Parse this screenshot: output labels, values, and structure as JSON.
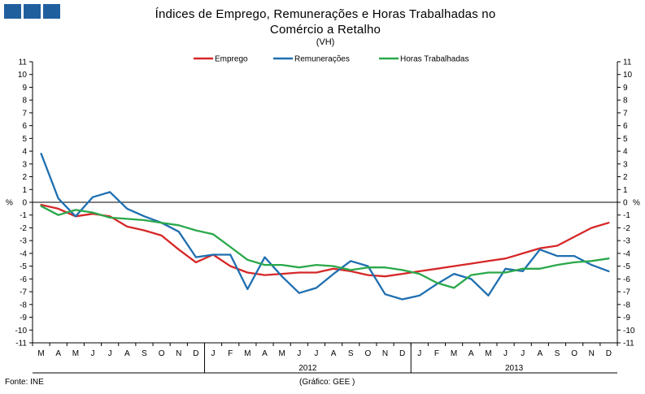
{
  "title": "Índices de Emprego, Remunerações e Horas Trabalhadas  no Comércio a Retalho",
  "subtitle": "(VH)",
  "source": "Fonte: INE",
  "credit": "(Gráfico: GEE )",
  "colors": {
    "logo": "#1f5f9e"
  },
  "chart_data": {
    "type": "line",
    "title": "Índices de Emprego, Remunerações e Horas Trabalhadas  no Comércio a Retalho",
    "ylabel_left": "%",
    "ylabel_right": "%",
    "ylim": [
      -11,
      11
    ],
    "yticks": [
      11,
      10,
      9,
      8,
      7,
      6,
      5,
      4,
      3,
      2,
      1,
      0,
      -1,
      -2,
      -3,
      -4,
      -5,
      -6,
      -7,
      -8,
      -9,
      -10,
      -11
    ],
    "categories": [
      "M",
      "A",
      "M",
      "J",
      "J",
      "A",
      "S",
      "O",
      "N",
      "D",
      "J",
      "F",
      "M",
      "A",
      "M",
      "J",
      "J",
      "A",
      "S",
      "O",
      "N",
      "D",
      "J",
      "F",
      "M",
      "A",
      "M",
      "J",
      "J",
      "A",
      "S",
      "O",
      "N",
      "D"
    ],
    "years": [
      {
        "label": "2012",
        "start": 10,
        "end": 21
      },
      {
        "label": "2013",
        "start": 22,
        "end": 33
      }
    ],
    "legend_position": "top-center",
    "series": [
      {
        "name": "Emprego",
        "color": "#d62728",
        "values": [
          -0.2,
          -0.5,
          -1.1,
          -0.9,
          -1.1,
          -1.9,
          -2.2,
          -2.6,
          -3.7,
          -4.7,
          -4.1,
          -5.0,
          -5.5,
          -5.7,
          -5.6,
          -5.5,
          -5.5,
          -5.2,
          -5.4,
          -5.7,
          -5.8,
          -5.6,
          -5.4,
          -5.2,
          -5.0,
          -4.8,
          -4.6,
          -4.4,
          -4.0,
          -3.6,
          -3.4,
          -2.7,
          -2.0,
          -1.6
        ]
      },
      {
        "name": "Remunerações",
        "color": "#1f6fb0",
        "values": [
          3.8,
          0.3,
          -1.1,
          0.4,
          0.8,
          -0.5,
          -1.1,
          -1.6,
          -2.3,
          -4.3,
          -4.1,
          -4.1,
          -6.8,
          -4.3,
          -5.8,
          -7.1,
          -6.7,
          -5.6,
          -4.6,
          -5.0,
          -7.2,
          -7.6,
          -7.3,
          -6.4,
          -5.6,
          -6.0,
          -7.3,
          -5.2,
          -5.4,
          -3.7,
          -4.2,
          -4.2,
          -4.9,
          -5.4
        ]
      },
      {
        "name": "Horas Trabalhadas",
        "color": "#2aa84a",
        "values": [
          -0.3,
          -1.0,
          -0.6,
          -0.8,
          -1.2,
          -1.3,
          -1.4,
          -1.6,
          -1.8,
          -2.2,
          -2.5,
          -3.5,
          -4.5,
          -4.9,
          -4.9,
          -5.1,
          -4.9,
          -5.0,
          -5.3,
          -5.1,
          -5.1,
          -5.3,
          -5.6,
          -6.3,
          -6.7,
          -5.7,
          -5.5,
          -5.5,
          -5.2,
          -5.2,
          -4.9,
          -4.7,
          -4.6,
          -4.4
        ]
      }
    ]
  }
}
